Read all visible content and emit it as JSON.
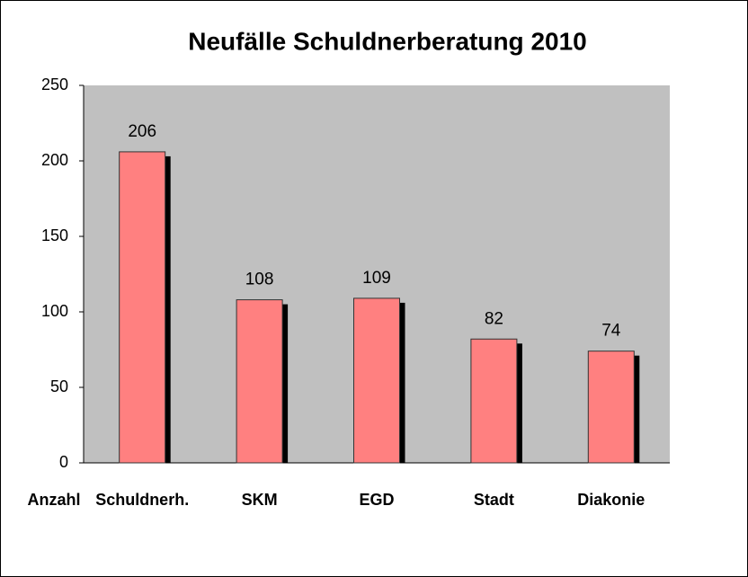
{
  "chart_data": {
    "type": "bar",
    "title": "Neufälle Schuldnerberatung 2010",
    "x_label": "Anzahl",
    "categories": [
      "Schuldnerh.",
      "SKM",
      "EGD",
      "Stadt",
      "Diakonie"
    ],
    "values": [
      206,
      108,
      109,
      82,
      74
    ],
    "color": "#ff8080",
    "shadow_color": "#000000",
    "plot_background": "#c0c0c0",
    "ylim": [
      0,
      250
    ],
    "yticks": [
      0,
      50,
      100,
      150,
      200,
      250
    ],
    "grid": false
  }
}
